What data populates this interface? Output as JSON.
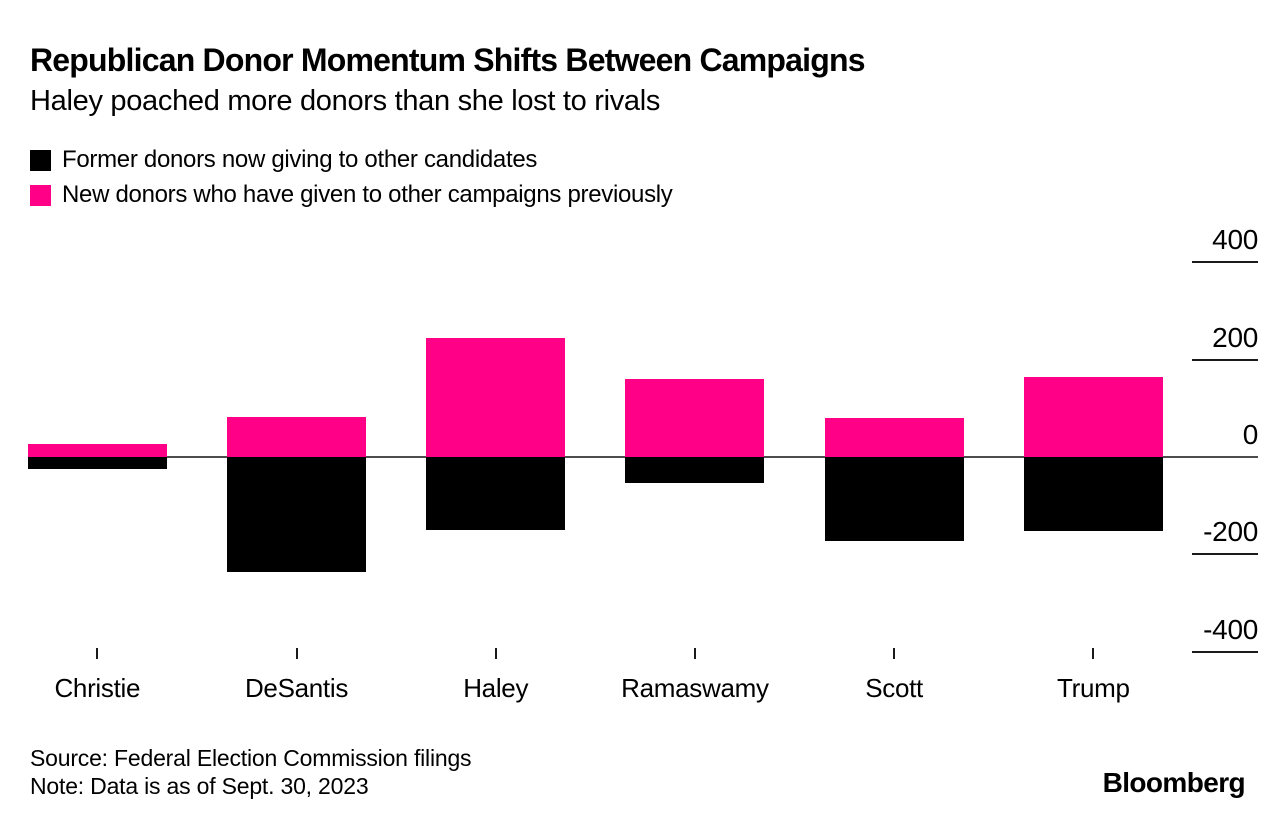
{
  "header": {
    "title": "Republican Donor Momentum Shifts Between Campaigns",
    "subtitle": "Haley poached more donors than she lost to rivals"
  },
  "legend": [
    {
      "label": "Former donors now giving to other candidates",
      "color": "#000000"
    },
    {
      "label": "New donors who have given to other campaigns previously",
      "color": "#ff0087"
    }
  ],
  "chart_data": {
    "type": "bar",
    "subtype": "diverging-stacked-vertical",
    "title": "Republican Donor Momentum Shifts Between Campaigns",
    "subtitle": "Haley poached more donors than she lost to rivals",
    "categories": [
      "Christie",
      "DeSantis",
      "Haley",
      "Ramaswamy",
      "Scott",
      "Trump"
    ],
    "series": [
      {
        "name": "Former donors now giving to other candidates",
        "color": "#000000",
        "values": [
          -25,
          -237,
          -150,
          -54,
          -173,
          -153
        ]
      },
      {
        "name": "New donors who have given to other campaigns previously",
        "color": "#ff0087",
        "values": [
          27,
          82,
          245,
          161,
          80,
          165
        ]
      }
    ],
    "xlabel": "",
    "ylabel": "",
    "yticks": [
      400,
      200,
      0,
      -200,
      -400
    ],
    "ylim": [
      -450,
      450
    ],
    "grid": "short-tick-dashes-right",
    "legend_position": "top-left",
    "axis_colors": {
      "zero_line": "#4d4d4d",
      "tick_line": "#1a1a1a"
    }
  },
  "footer": {
    "source": "Source: Federal Election Commission filings",
    "note": "Note: Data is as of Sept. 30, 2023",
    "brand": "Bloomberg"
  }
}
